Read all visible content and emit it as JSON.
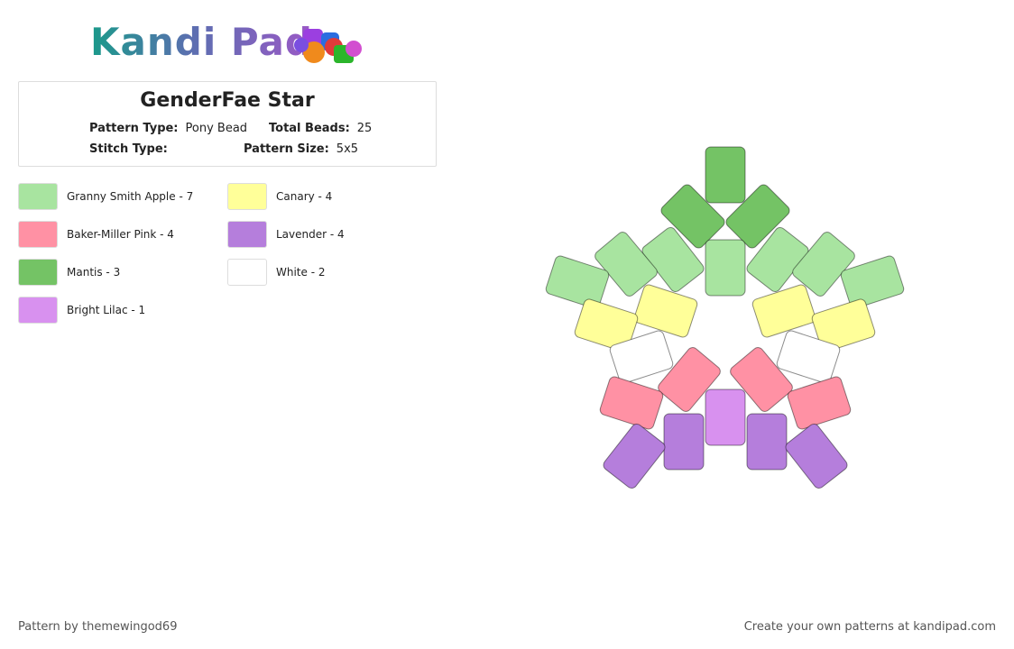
{
  "header": {
    "logo": "Kandi Pad"
  },
  "pattern": {
    "title": "GenderFae Star",
    "fields": [
      {
        "label": "Pattern Type:",
        "value": "Pony Bead"
      },
      {
        "label": "Total Beads:",
        "value": "25"
      },
      {
        "label": "Stitch Type:",
        "value": ""
      },
      {
        "label": "Pattern Size:",
        "value": "5x5"
      }
    ]
  },
  "legend": [
    {
      "label": "Granny Smith Apple - 7",
      "color": "#a8e4a0"
    },
    {
      "label": "Baker-Miller Pink - 4",
      "color": "#ff91a4"
    },
    {
      "label": "Mantis - 3",
      "color": "#74c365"
    },
    {
      "label": "Bright Lilac - 1",
      "color": "#d891ef"
    },
    {
      "label": "Canary - 4",
      "color": "#ffff99"
    },
    {
      "label": "Lavender - 4",
      "color": "#b57edc"
    },
    {
      "label": "White - 2",
      "color": "#ffffff"
    }
  ],
  "footer": {
    "left": "Pattern by themewingod69",
    "right": "Create your own patterns at kandipad.com"
  }
}
